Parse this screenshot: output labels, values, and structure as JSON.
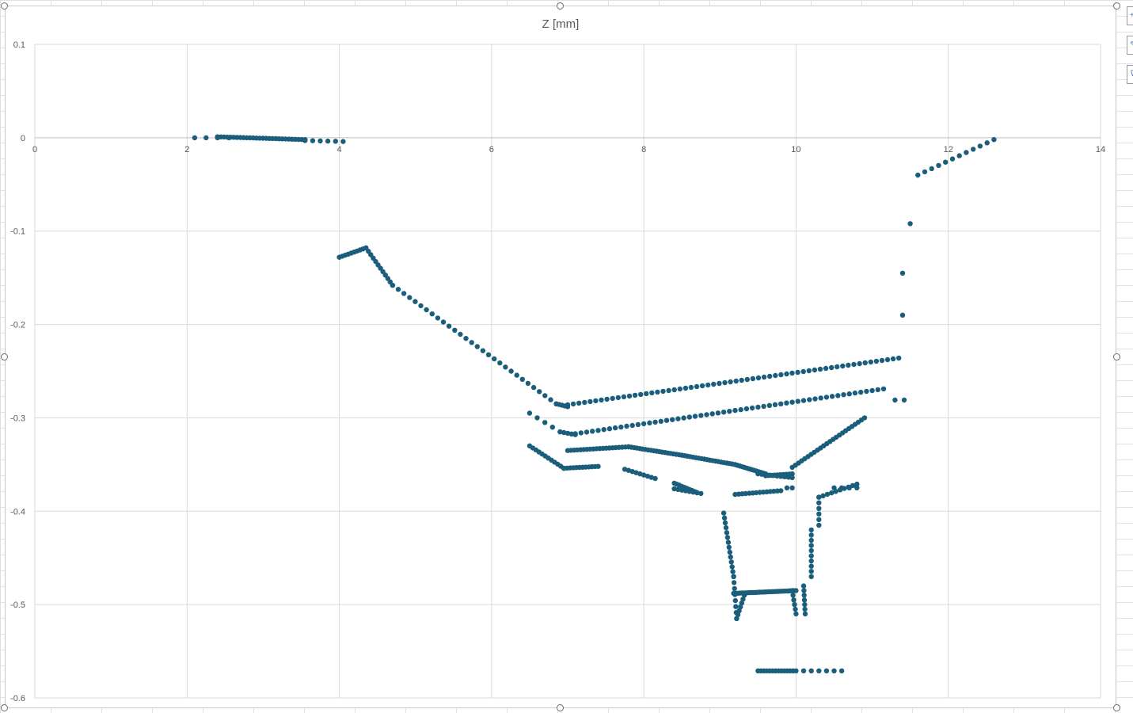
{
  "chart_data": {
    "type": "scatter",
    "title": "Z [mm]",
    "xlabel": "",
    "ylabel": "",
    "xlim": [
      0,
      14
    ],
    "ylim": [
      -0.6,
      0.1
    ],
    "x_ticks": [
      0,
      2,
      4,
      6,
      8,
      10,
      12,
      14
    ],
    "y_ticks": [
      0.1,
      0,
      -0.1,
      -0.2,
      -0.3,
      -0.4,
      -0.5,
      -0.6
    ],
    "x_tick_labels": [
      "0",
      "2",
      "4",
      "6",
      "8",
      "10",
      "12",
      "14"
    ],
    "y_tick_labels": [
      "0.1",
      "0",
      "-0.1",
      "-0.2",
      "-0.3",
      "-0.4",
      "-0.5",
      "-0.6"
    ],
    "grid": true,
    "legend": "none",
    "marker_color": "#1b5e7b",
    "series": [
      {
        "segments": [
          {
            "from": [
              2.1,
              0.0
            ],
            "to": [
              2.55,
              0.0
            ],
            "n": 4
          },
          {
            "from": [
              2.4,
              0.001
            ],
            "to": [
              3.55,
              -0.002
            ],
            "n": 28
          },
          {
            "from": [
              3.55,
              -0.003
            ],
            "to": [
              4.05,
              -0.004
            ],
            "n": 6
          },
          {
            "from": [
              4.0,
              -0.128
            ],
            "to": [
              4.35,
              -0.118
            ],
            "n": 10
          },
          {
            "from": [
              4.35,
              -0.118
            ],
            "to": [
              4.7,
              -0.158
            ],
            "n": 12
          },
          {
            "from": [
              4.7,
              -0.158
            ],
            "to": [
              6.85,
              -0.285
            ],
            "n": 30
          },
          {
            "from": [
              6.85,
              -0.285
            ],
            "to": [
              7.0,
              -0.288
            ],
            "n": 5
          },
          {
            "from": [
              7.0,
              -0.286
            ],
            "to": [
              11.35,
              -0.236
            ],
            "n": 60
          },
          {
            "from": [
              6.5,
              -0.295
            ],
            "to": [
              6.9,
              -0.315
            ],
            "n": 5
          },
          {
            "from": [
              6.9,
              -0.315
            ],
            "to": [
              7.1,
              -0.318
            ],
            "n": 5
          },
          {
            "from": [
              7.1,
              -0.317
            ],
            "to": [
              11.15,
              -0.269
            ],
            "n": 55
          },
          {
            "from": [
              6.5,
              -0.33
            ],
            "to": [
              6.95,
              -0.354
            ],
            "n": 12
          },
          {
            "from": [
              6.95,
              -0.354
            ],
            "to": [
              7.4,
              -0.352
            ],
            "n": 12
          },
          {
            "from": [
              7.0,
              -0.335
            ],
            "to": [
              7.8,
              -0.331
            ],
            "n": 20
          },
          {
            "from": [
              7.8,
              -0.331
            ],
            "to": [
              8.5,
              -0.34
            ],
            "n": 20
          },
          {
            "from": [
              8.5,
              -0.34
            ],
            "to": [
              9.2,
              -0.35
            ],
            "n": 20
          },
          {
            "from": [
              9.2,
              -0.35
            ],
            "to": [
              9.6,
              -0.36
            ],
            "n": 14
          },
          {
            "from": [
              9.6,
              -0.362
            ],
            "to": [
              9.95,
              -0.36
            ],
            "n": 10
          },
          {
            "from": [
              9.5,
              -0.36
            ],
            "to": [
              9.95,
              -0.364
            ],
            "n": 10
          },
          {
            "from": [
              9.95,
              -0.353
            ],
            "to": [
              10.9,
              -0.3
            ],
            "n": 24
          },
          {
            "from": [
              7.75,
              -0.355
            ],
            "to": [
              8.15,
              -0.365
            ],
            "n": 9
          },
          {
            "from": [
              8.4,
              -0.37
            ],
            "to": [
              8.7,
              -0.38
            ],
            "n": 10
          },
          {
            "from": [
              8.4,
              -0.376
            ],
            "to": [
              8.75,
              -0.381
            ],
            "n": 8
          },
          {
            "from": [
              9.2,
              -0.382
            ],
            "to": [
              9.8,
              -0.378
            ],
            "n": 14
          },
          {
            "from": [
              9.88,
              -0.375
            ],
            "to": [
              9.95,
              -0.375
            ],
            "n": 2
          },
          {
            "from": [
              9.05,
              -0.402
            ],
            "to": [
              9.18,
              -0.47
            ],
            "n": 14
          },
          {
            "from": [
              9.18,
              -0.47
            ],
            "to": [
              9.22,
              -0.515
            ],
            "n": 8
          },
          {
            "from": [
              9.22,
              -0.515
            ],
            "to": [
              9.32,
              -0.49
            ],
            "n": 7
          },
          {
            "from": [
              9.18,
              -0.488
            ],
            "to": [
              10.0,
              -0.485
            ],
            "n": 30
          },
          {
            "from": [
              9.95,
              -0.485
            ],
            "to": [
              10.0,
              -0.51
            ],
            "n": 6
          },
          {
            "from": [
              10.1,
              -0.48
            ],
            "to": [
              10.12,
              -0.51
            ],
            "n": 7
          },
          {
            "from": [
              10.2,
              -0.42
            ],
            "to": [
              10.2,
              -0.47
            ],
            "n": 10
          },
          {
            "from": [
              10.3,
              -0.385
            ],
            "to": [
              10.3,
              -0.415
            ],
            "n": 6
          },
          {
            "from": [
              10.3,
              -0.385
            ],
            "to": [
              10.8,
              -0.371
            ],
            "n": 10
          },
          {
            "from": [
              10.5,
              -0.375
            ],
            "to": [
              10.8,
              -0.375
            ],
            "n": 4
          },
          {
            "from": [
              9.5,
              -0.571
            ],
            "to": [
              10.0,
              -0.571
            ],
            "n": 14
          },
          {
            "from": [
              10.1,
              -0.571
            ],
            "to": [
              10.6,
              -0.571
            ],
            "n": 6
          },
          {
            "from": [
              11.6,
              -0.04
            ],
            "to": [
              12.6,
              -0.002
            ],
            "n": 12
          }
        ],
        "points": [
          [
            11.3,
            -0.281
          ],
          [
            11.42,
            -0.281
          ],
          [
            11.4,
            -0.19
          ],
          [
            11.4,
            -0.145
          ],
          [
            11.5,
            -0.092
          ]
        ]
      }
    ]
  }
}
